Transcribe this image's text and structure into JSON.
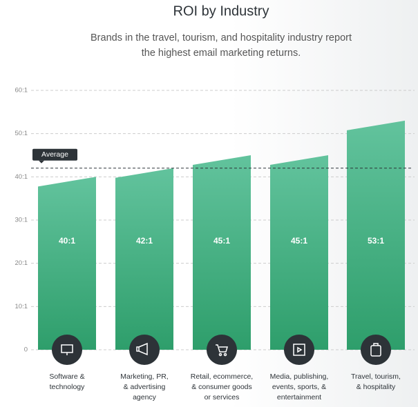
{
  "chart_data": {
    "type": "bar",
    "title": "ROI by Industry",
    "subtitle": [
      "Brands in the travel, tourism, and hospitality industry report",
      "the highest email marketing returns."
    ],
    "categories": [
      "Software &\ntechnology",
      "Marketing, PR,\n& advertising\nagency",
      "Retail, ecommerce,\n& consumer goods\nor services",
      "Media, publishing,\nevents, sports, &\nentertainment",
      "Travel, tourism,\n& hospitality"
    ],
    "values": [
      40,
      42,
      45,
      45,
      53
    ],
    "value_labels": [
      "40:1",
      "42:1",
      "45:1",
      "45:1",
      "53:1"
    ],
    "color": [
      "#62c39d",
      "#2e9e6b"
    ],
    "ylim": [
      0,
      60
    ],
    "yticks": [
      0,
      {
        "value": 10,
        "label": "10:1"
      },
      {
        "value": 20,
        "label": "20:1"
      },
      {
        "value": 30,
        "label": "30:1"
      },
      {
        "value": 40,
        "label": "40:1"
      },
      {
        "value": 50,
        "label": "50:1"
      },
      {
        "value": 60,
        "label": "60:1"
      }
    ],
    "grid": true,
    "average": {
      "label": "Average",
      "value": 42
    }
  }
}
